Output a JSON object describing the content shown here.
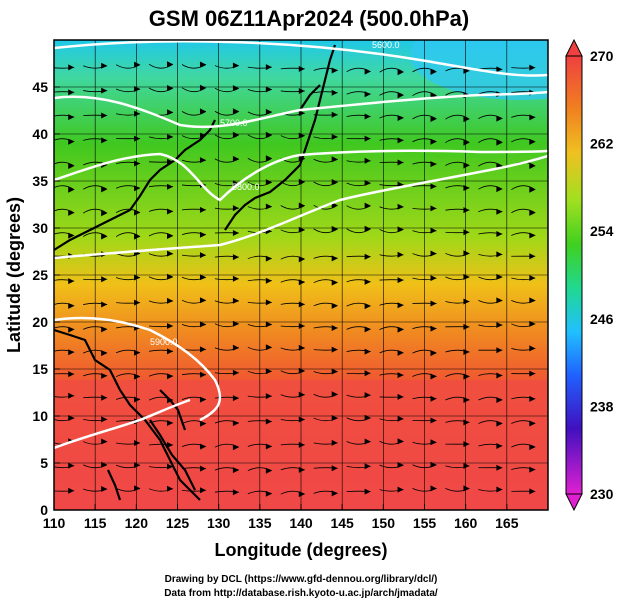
{
  "title": "GSM 06Z11Apr2024 (500.0hPa)",
  "x_axis": {
    "label": "Longitude (degrees)",
    "min": 110,
    "max": 170,
    "ticks": [
      "110",
      "115",
      "120",
      "125",
      "130",
      "135",
      "140",
      "145",
      "150",
      "155",
      "160",
      "165"
    ]
  },
  "y_axis": {
    "label": "Latitude  (degrees)",
    "min": 0,
    "max": 50,
    "ticks": [
      "0",
      "5",
      "10",
      "15",
      "20",
      "25",
      "30",
      "35",
      "40",
      "45"
    ]
  },
  "colorbar": {
    "min": 230,
    "max": 270,
    "ticks": [
      "270",
      "262",
      "254",
      "246",
      "238",
      "230"
    ],
    "colors": [
      "#e020d0",
      "#4010c0",
      "#2060ff",
      "#20c0ff",
      "#20d890",
      "#40d020",
      "#a0e020",
      "#f0c020",
      "#f08020",
      "#f04040"
    ]
  },
  "contours": [
    {
      "label": "5600.0",
      "lat_at_west": 50.0
    },
    {
      "label": "5700.0",
      "lat_at_west": 45.5
    },
    {
      "label": "5800.0",
      "lat_at_west": 40.0
    },
    {
      "label": "5900.0",
      "lat_at_west": 29.0
    },
    {
      "label": "5900.0",
      "lat_at_west": 22.5
    },
    {
      "label": "5900.0",
      "lat_at_west": 8.0
    }
  ],
  "footer": {
    "line1": "Drawing by DCL (https://www.gfd-dennou.org/library/dcl/)",
    "line2": "Data from http://database.rish.kyoto-u.ac.jp/arch/jmadata/"
  }
}
